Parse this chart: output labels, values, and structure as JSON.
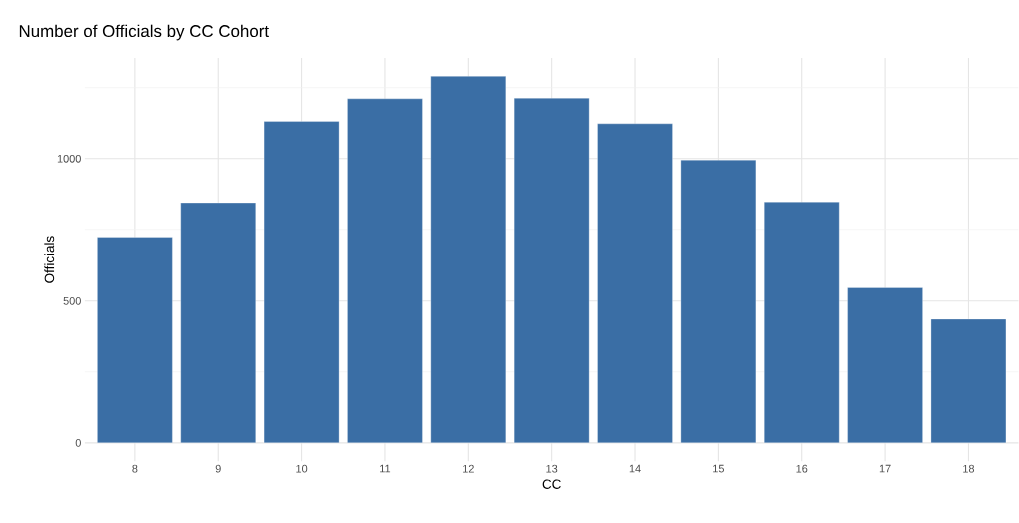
{
  "chart_data": {
    "type": "bar",
    "title": "Number of Officials by CC Cohort",
    "xlabel": "CC",
    "ylabel": "Officials",
    "categories": [
      "8",
      "9",
      "10",
      "11",
      "12",
      "13",
      "14",
      "15",
      "16",
      "17",
      "18"
    ],
    "values": [
      723,
      844,
      1131,
      1211,
      1290,
      1213,
      1123,
      995,
      847,
      547,
      436
    ],
    "color": "#3a6ea5",
    "ylim": [
      -65,
      1355
    ],
    "yticks": [
      0,
      {
        "value": 250,
        "label": null
      },
      500,
      {
        "value": 750,
        "label": null
      },
      1000,
      {
        "value": 1250,
        "label": null
      }
    ],
    "grid": true
  }
}
